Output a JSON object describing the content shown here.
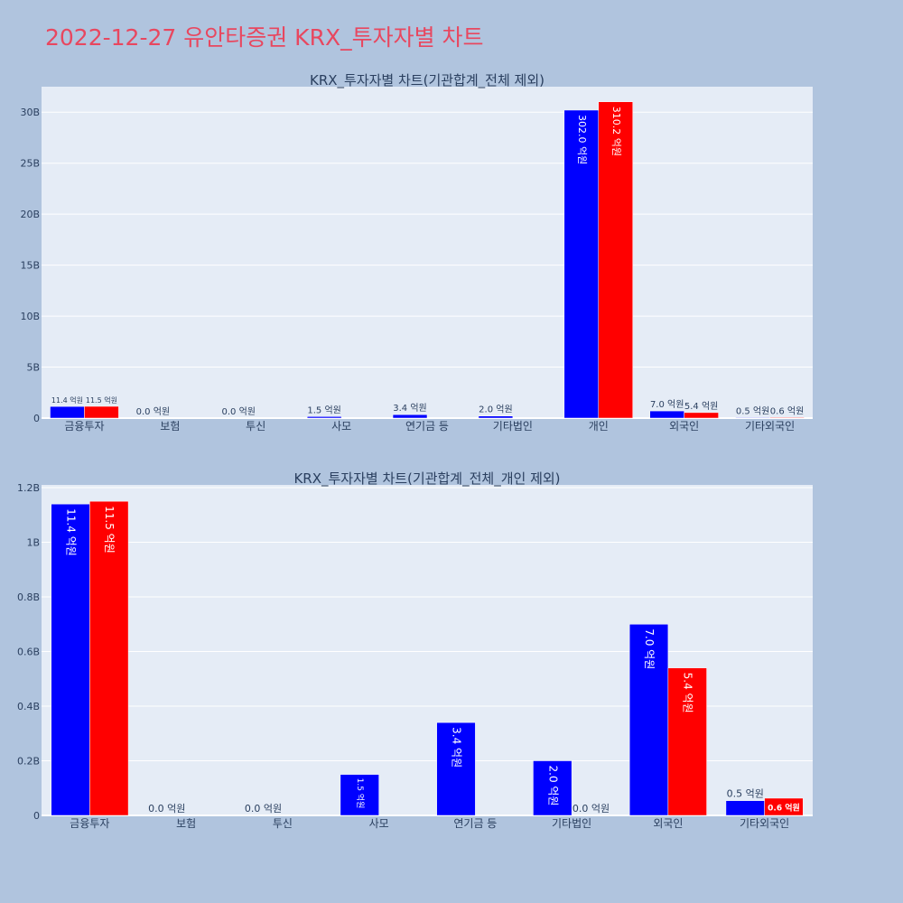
{
  "page_title": "2022-12-27 유안타증권 KRX_투자자별 차트",
  "colors": {
    "series1": "#0000ff",
    "series2": "#ff0000",
    "plot_bg": "#e5ecf6",
    "page_bg": "#b0c4de",
    "title": "#e8475f"
  },
  "chart_data": [
    {
      "type": "bar",
      "title": "KRX_투자자별 차트(기관합계_전체 제외)",
      "categories": [
        "금융투자",
        "보험",
        "투신",
        "사모",
        "연기금 등",
        "기타법인",
        "개인",
        "외국인",
        "기타외국인"
      ],
      "series": [
        {
          "values": [
            1140000000,
            0,
            0,
            150000000,
            340000000,
            200000000,
            30200000000,
            700000000,
            54000000
          ],
          "labels": [
            "11.4 억원",
            "0.0 억원",
            "0.0 억원",
            "1.5 억원",
            "3.4 억원",
            "2.0 억원",
            "302.0 억원",
            "7.0 억원",
            "0.5 억원"
          ]
        },
        {
          "values": [
            1150000000,
            null,
            null,
            null,
            null,
            null,
            31020000000,
            540000000,
            63000000
          ],
          "labels": [
            "11.5 억원",
            "",
            "",
            "",
            "",
            "",
            "310.2 억원",
            "5.4 억원",
            "0.6 억원"
          ]
        }
      ],
      "ylim": [
        0,
        32500000000
      ],
      "ytick_values": [
        0,
        5000000000,
        10000000000,
        15000000000,
        20000000000,
        25000000000,
        30000000000
      ],
      "ytick_labels": [
        "0",
        "5B",
        "10B",
        "15B",
        "20B",
        "25B",
        "30B"
      ],
      "grid": true
    },
    {
      "type": "bar",
      "title": "KRX_투자자별 차트(기관합계_전체_개인 제외)",
      "categories": [
        "금융투자",
        "보험",
        "투신",
        "사모",
        "연기금 등",
        "기타법인",
        "외국인",
        "기타외국인"
      ],
      "series": [
        {
          "values": [
            1140000000,
            0,
            0,
            150000000,
            340000000,
            200000000,
            700000000,
            54000000
          ],
          "labels": [
            "11.4 억원",
            "0.0 억원",
            "0.0 억원",
            "1.5 억원",
            "3.4 억원",
            "2.0 억원",
            "7.0 억원",
            "0.5 억원"
          ]
        },
        {
          "values": [
            1150000000,
            null,
            null,
            null,
            null,
            0,
            540000000,
            63000000
          ],
          "labels": [
            "11.5 억원",
            "",
            "",
            "",
            "",
            "0.0 억원",
            "5.4 억원",
            "0.6 억원"
          ]
        }
      ],
      "ylim": [
        0,
        1210000000
      ],
      "ytick_values": [
        0,
        200000000,
        400000000,
        600000000,
        800000000,
        1000000000,
        1200000000
      ],
      "ytick_labels": [
        "0",
        "0.2B",
        "0.4B",
        "0.6B",
        "0.8B",
        "1B",
        "1.2B"
      ],
      "grid": true
    }
  ]
}
